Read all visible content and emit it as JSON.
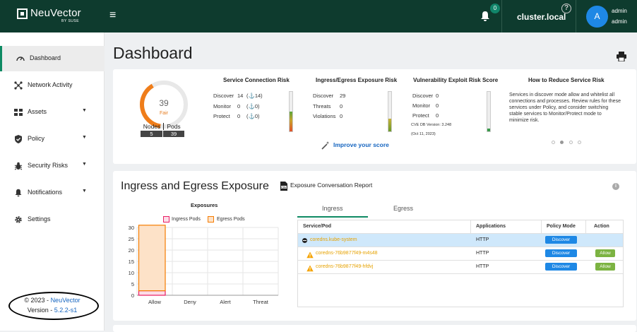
{
  "header": {
    "brand": "NeuVector",
    "brand_sub": "BY SUSE",
    "menu_icon": "hamburger-icon",
    "notification_count": "0",
    "cluster": "cluster.local",
    "help": "?",
    "avatar_initial": "A",
    "user_name": "admin",
    "user_role": "admin"
  },
  "sidebar": {
    "items": [
      {
        "label": "Dashboard",
        "icon": "gauge-icon",
        "active": true
      },
      {
        "label": "Network Activity",
        "icon": "network-icon"
      },
      {
        "label": "Assets",
        "icon": "assets-icon",
        "caret": "▼"
      },
      {
        "label": "Policy",
        "icon": "shield-icon",
        "caret": "▼"
      },
      {
        "label": "Security Risks",
        "icon": "bug-icon",
        "caret": "▼"
      },
      {
        "label": "Notifications",
        "icon": "bell-icon",
        "caret": "▼"
      },
      {
        "label": "Settings",
        "icon": "gear-icon"
      }
    ],
    "copyright_prefix": "© 2023 - ",
    "copyright_brand": "NeuVector",
    "version_prefix": "Version - ",
    "version": "5.2.2-s1"
  },
  "page": {
    "title": "Dashboard"
  },
  "score": {
    "value": "39",
    "label": "Fair",
    "score_fraction": 0.39,
    "nodes_label": "Nodes",
    "nodes_value": "5",
    "pods_label": "Pods",
    "pods_value": "39"
  },
  "service_risk": {
    "title": "Service Connection Risk",
    "rows": [
      {
        "label": "Discover",
        "value": "14",
        "extra": "(⚓14)"
      },
      {
        "label": "Monitor",
        "value": "0",
        "extra": "(⚓0)"
      },
      {
        "label": "Protect",
        "value": "0",
        "extra": "(⚓0)"
      }
    ]
  },
  "exposure_risk": {
    "title": "Ingress/Egress Exposure Risk",
    "rows": [
      {
        "label": "Discover",
        "value": "29"
      },
      {
        "label": "Threats",
        "value": "0"
      },
      {
        "label": "Violations",
        "value": "0"
      }
    ]
  },
  "vuln_risk": {
    "title": "Vulnerability Exploit Risk Score",
    "rows": [
      {
        "label": "Discover",
        "value": "0"
      },
      {
        "label": "Monitor",
        "value": "0"
      },
      {
        "label": "Protect",
        "value": "0"
      }
    ],
    "cve_db": "CVE DB Version: 3.248",
    "cve_date": "(Oct 11, 2023)"
  },
  "improve": "Improve your score",
  "how_to": {
    "title": "How to Reduce Service Risk",
    "text": "Services in discover mode allow and whitelist all connections and processes. Review rules for these services under Policy, and consider switching stable services to Monitor/Protect mode to minimize risk."
  },
  "exposure_section": {
    "title": "Ingress and Egress Exposure",
    "report_label": "Exposure Conversation Report",
    "tabs": [
      "Ingress",
      "Egress"
    ]
  },
  "chart_data": {
    "type": "bar",
    "title": "Exposures",
    "categories": [
      "Allow",
      "Deny",
      "Alert",
      "Threat"
    ],
    "series": [
      {
        "name": "Ingress Pods",
        "values": [
          2,
          0,
          0,
          0
        ],
        "color": "#e91e63"
      },
      {
        "name": "Egress Pods",
        "values": [
          29,
          0,
          0,
          0
        ],
        "color": "#f57c00"
      }
    ],
    "ylim": [
      0,
      30
    ],
    "yticks": [
      0,
      5,
      10,
      15,
      20,
      25,
      30
    ],
    "stacked": true,
    "grid": true
  },
  "table": {
    "headers": [
      "Service/Pod",
      "Applications",
      "Policy Mode",
      "Action"
    ],
    "rows": [
      {
        "name": "coredns.kube-system",
        "app": "HTTP",
        "mode": "Discover",
        "action": "",
        "type": "group"
      },
      {
        "name": "coredns-76b9877f49-m4s48",
        "app": "HTTP",
        "mode": "Discover",
        "action": "Allow",
        "type": "pod"
      },
      {
        "name": "coredns-76b9877f49-hfdvj",
        "app": "HTTP",
        "mode": "Discover",
        "action": "Allow",
        "type": "pod"
      }
    ]
  }
}
